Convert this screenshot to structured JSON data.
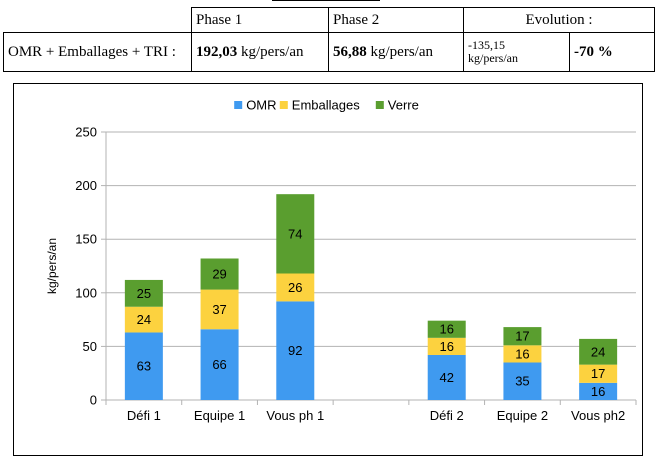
{
  "summary_table": {
    "headers": [
      "",
      "Phase 1",
      "Phase 2",
      "Evolution :"
    ],
    "row": {
      "label": "OMR + Emballages + TRI :",
      "phase1_value": "192,03",
      "phase1_unit": " kg/pers/an",
      "phase2_value": "56,88",
      "phase2_unit": " kg/pers/an",
      "evolution_abs_value": "-135,15",
      "evolution_abs_unit": "kg/pers/an",
      "evolution_pct": "-70 %"
    }
  },
  "chart_data": {
    "type": "bar",
    "stacked": true,
    "title": "",
    "xlabel": "",
    "ylabel": "kg/pers/an",
    "ylim": [
      0,
      250
    ],
    "yticks": [
      0,
      50,
      100,
      150,
      200,
      250
    ],
    "grid": true,
    "legend_position": "top",
    "categories": [
      "Défi 1",
      "Equipe 1",
      "Vous ph 1",
      "",
      "Défi 2",
      "Equipe 2",
      "Vous ph2"
    ],
    "series": [
      {
        "name": "OMR",
        "color": "#3f9af0",
        "values": [
          63,
          66,
          92,
          null,
          42,
          35,
          16
        ]
      },
      {
        "name": "Emballages",
        "color": "#fcd23f",
        "values": [
          24,
          37,
          26,
          null,
          16,
          16,
          17
        ]
      },
      {
        "name": "Verre",
        "color": "#5a9e2f",
        "values": [
          25,
          29,
          74,
          null,
          16,
          17,
          24
        ]
      }
    ]
  }
}
